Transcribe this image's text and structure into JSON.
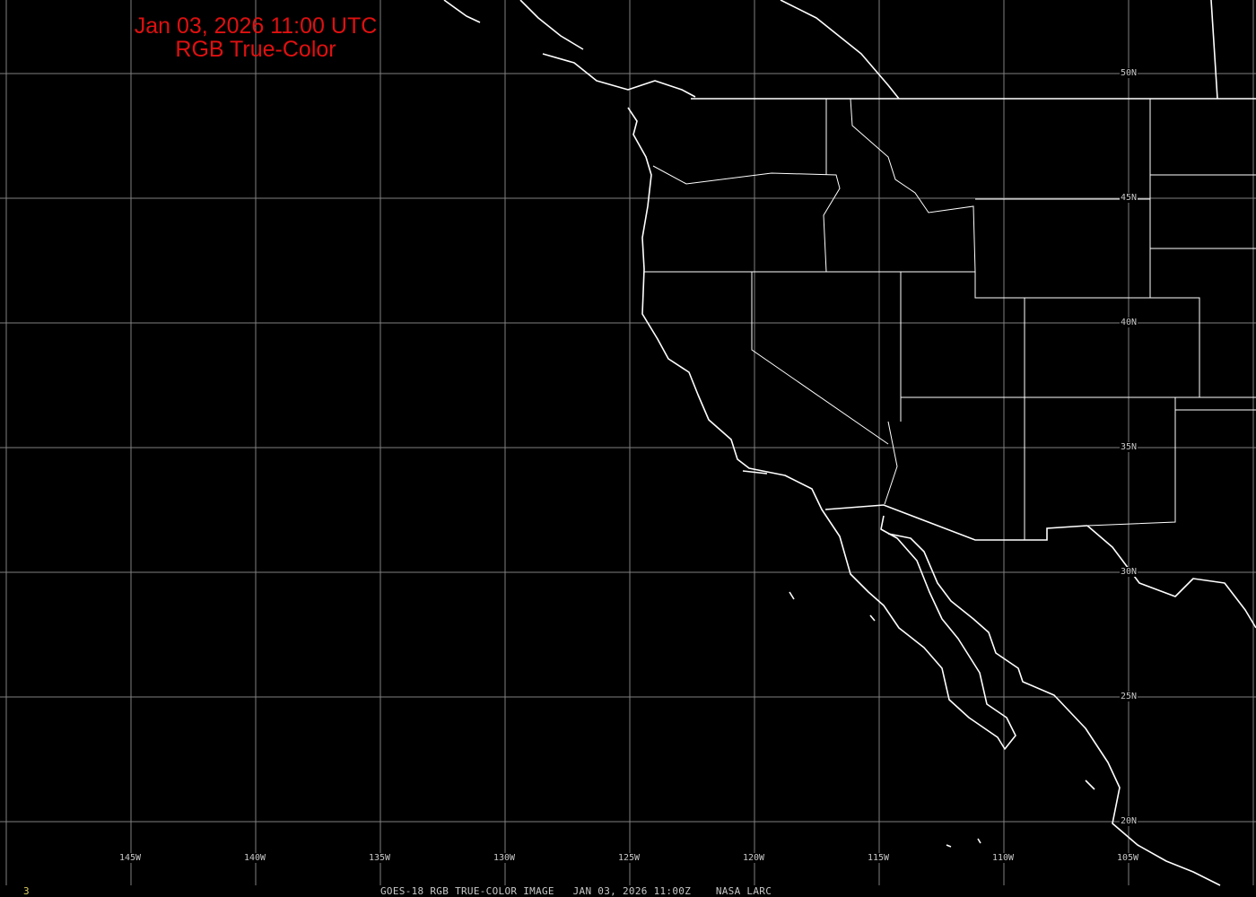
{
  "title": {
    "line1": "Jan 03, 2026 11:00 UTC",
    "line2": "RGB True-Color"
  },
  "caption": "GOES-18 RGB TRUE-COLOR IMAGE   JAN 03, 2026 11:00Z    NASA LARC",
  "frame_number": "3",
  "longitude_labels": [
    "145W",
    "140W",
    "135W",
    "130W",
    "125W",
    "120W",
    "115W",
    "110W",
    "105W"
  ],
  "latitude_labels": [
    "50N",
    "45N",
    "40N",
    "35N",
    "30N",
    "25N",
    "20N"
  ],
  "colors": {
    "background": "#000000",
    "title": "#e01010",
    "grid": "#808080",
    "coastline": "#ffffff",
    "frame_number": "#e0d060"
  }
}
